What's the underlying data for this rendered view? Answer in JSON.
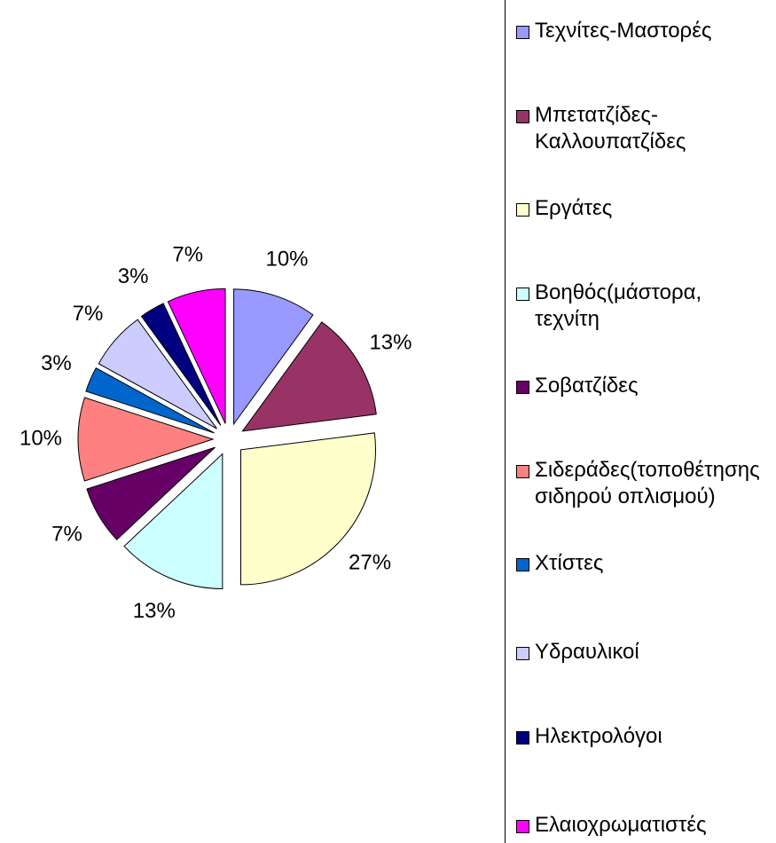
{
  "chart_data": {
    "type": "pie",
    "categories": [
      "Τεχνίτες-Μαστορές",
      "Μπετατζίδες-Καλλουπατζίδες",
      "Εργάτες",
      "Βοηθός(μάστορα, τεχνίτη",
      "Σοβατζίδες",
      "Σιδεράδες(τοποθέτησης σιδηρού οπλισμού)",
      "Χτίστες",
      "Υδραυλικοί",
      "Ηλεκτρολόγοι",
      "Ελαιοχρωματιστές"
    ],
    "values": [
      10,
      13,
      27,
      13,
      7,
      10,
      3,
      7,
      3,
      7
    ],
    "value_labels": [
      "10%",
      "13%",
      "27%",
      "13%",
      "7%",
      "10%",
      "3%",
      "7%",
      "3%",
      "7%"
    ],
    "colors": [
      "#9999ff",
      "#993366",
      "#ffffcc",
      "#ccffff",
      "#660066",
      "#ff8080",
      "#0066cc",
      "#ccccff",
      "#000080",
      "#ff00ff"
    ]
  }
}
